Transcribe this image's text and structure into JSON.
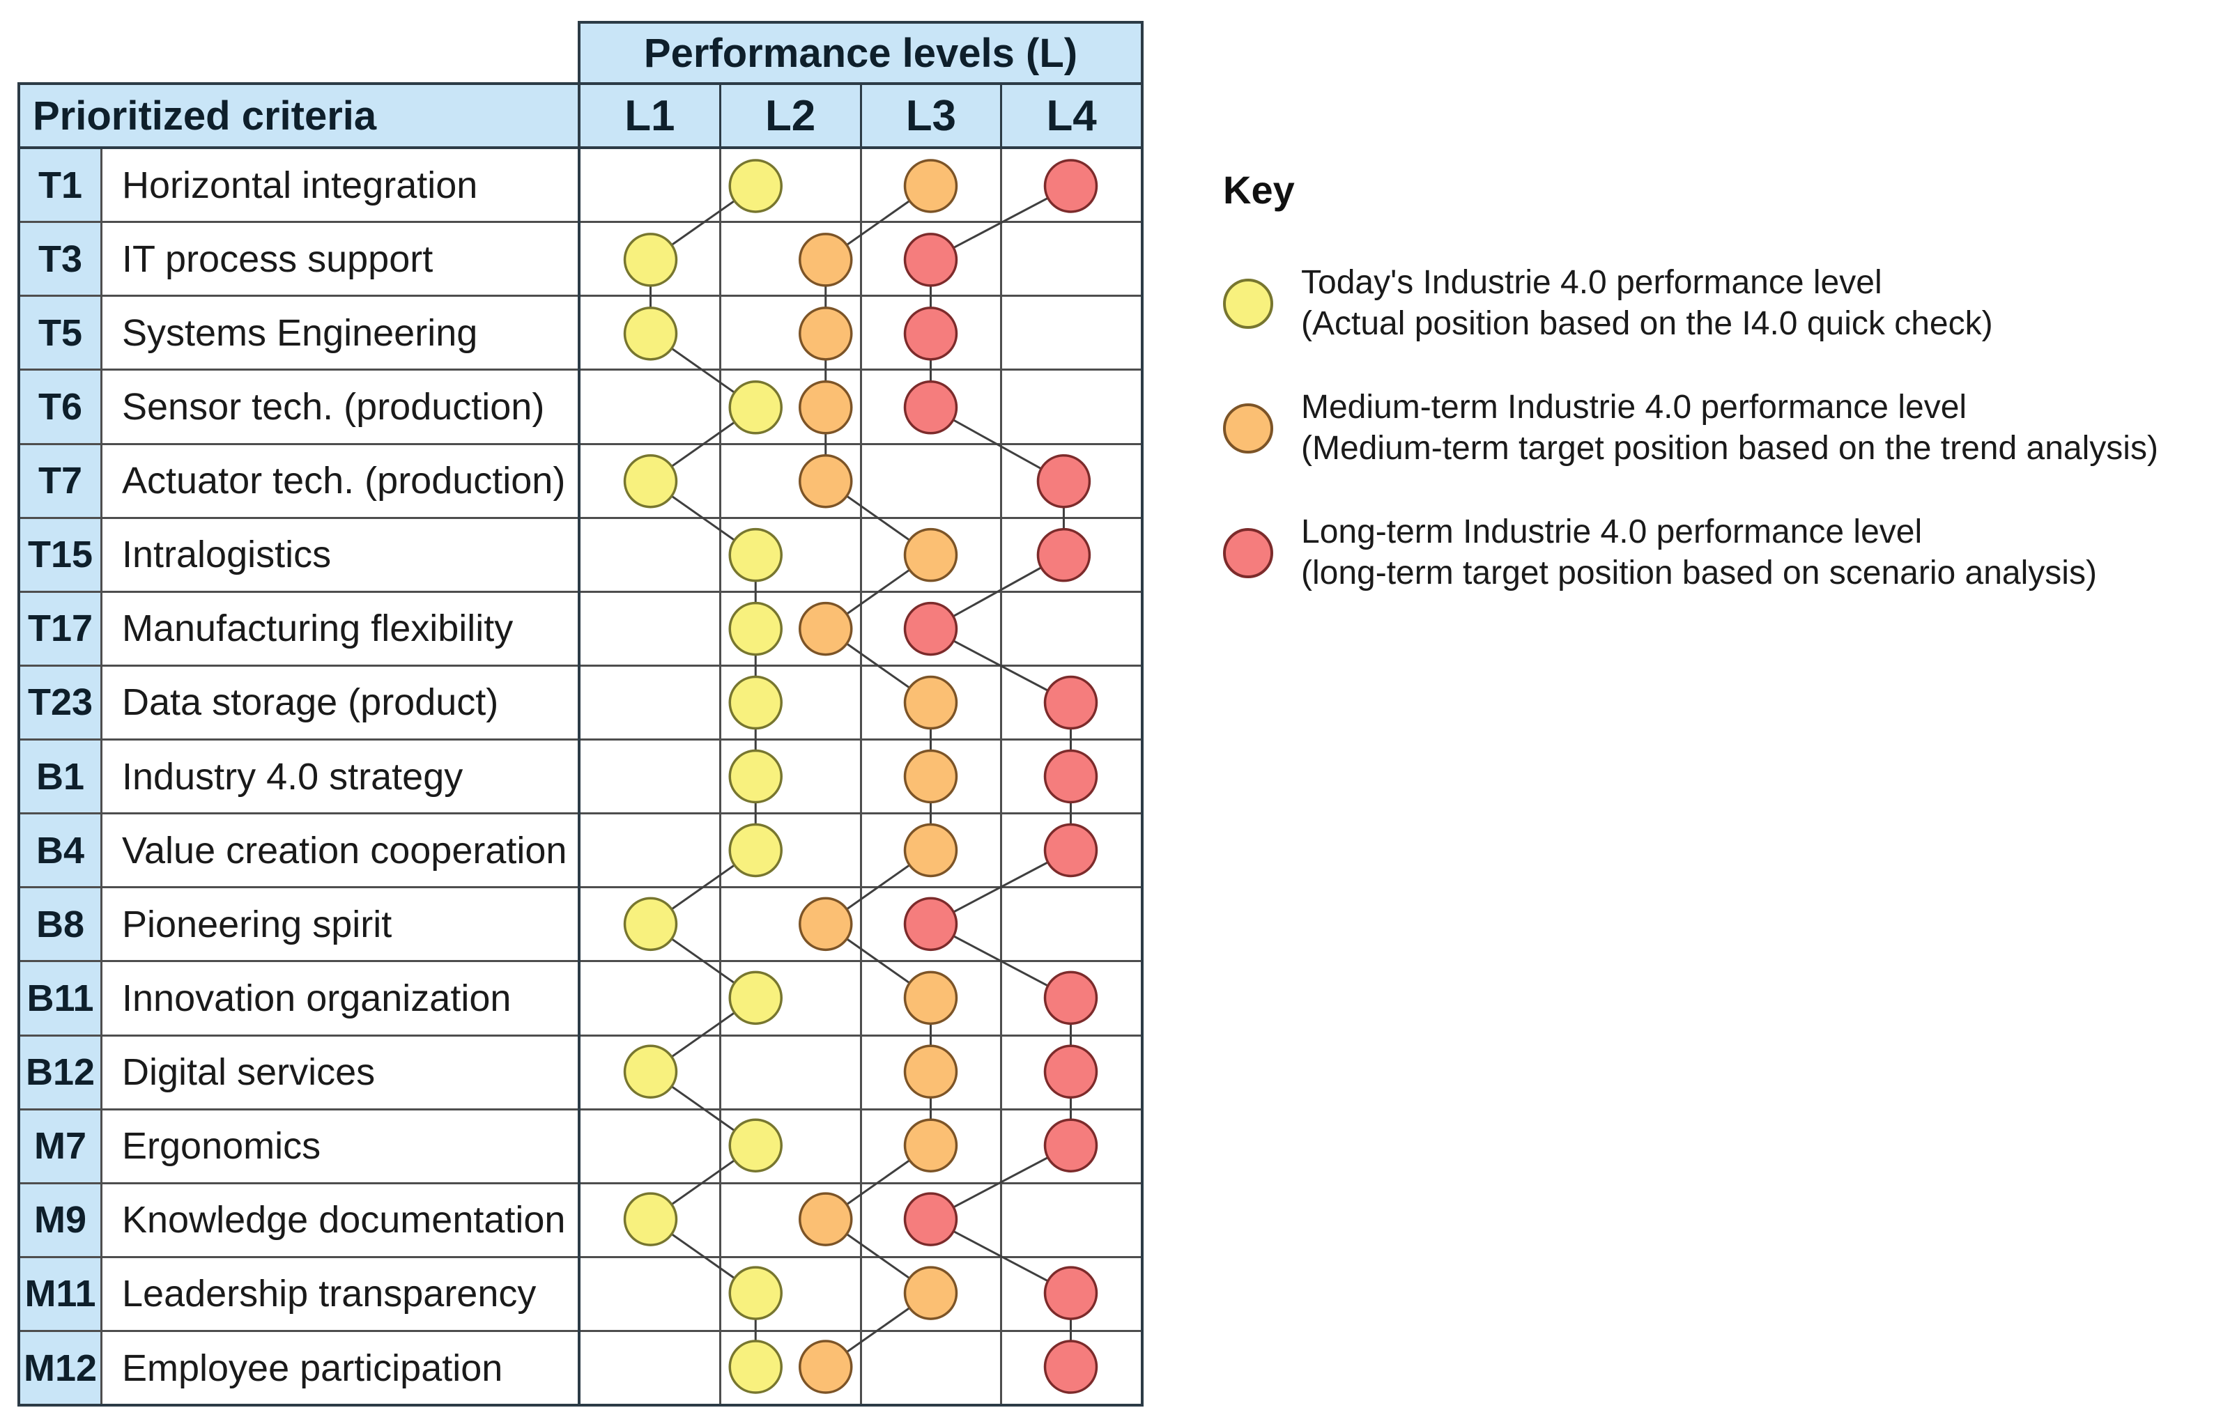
{
  "table": {
    "performance_header": "Performance levels (L)",
    "criteria_header": "Prioritized criteria",
    "level_labels": [
      "L1",
      "L2",
      "L3",
      "L4"
    ],
    "rows": [
      {
        "code": "T1",
        "label": "Horizontal integration"
      },
      {
        "code": "T3",
        "label": "IT process support"
      },
      {
        "code": "T5",
        "label": "Systems Engineering"
      },
      {
        "code": "T6",
        "label": "Sensor tech. (production)"
      },
      {
        "code": "T7",
        "label": "Actuator tech. (production)"
      },
      {
        "code": "T15",
        "label": "Intralogistics"
      },
      {
        "code": "T17",
        "label": "Manufacturing flexibility"
      },
      {
        "code": "T23",
        "label": "Data storage (product)"
      },
      {
        "code": "B1",
        "label": "Industry 4.0 strategy"
      },
      {
        "code": "B4",
        "label": "Value creation cooperation"
      },
      {
        "code": "B8",
        "label": "Pioneering spirit"
      },
      {
        "code": "B11",
        "label": "Innovation organization"
      },
      {
        "code": "B12",
        "label": "Digital services"
      },
      {
        "code": "M7",
        "label": "Ergonomics"
      },
      {
        "code": "M9",
        "label": "Knowledge documentation"
      },
      {
        "code": "M11",
        "label": "Leadership transparency"
      },
      {
        "code": "M12",
        "label": "Employee participation"
      }
    ]
  },
  "chart_data": {
    "type": "scatter",
    "title": "Performance levels (L)",
    "categories": [
      "T1",
      "T3",
      "T5",
      "T6",
      "T7",
      "T15",
      "T17",
      "T23",
      "B1",
      "B4",
      "B8",
      "B11",
      "B12",
      "M7",
      "M9",
      "M11",
      "M12"
    ],
    "levels": [
      "L1",
      "L2",
      "L3",
      "L4"
    ],
    "xlim": [
      0.5,
      4.5
    ],
    "note": "values are horizontal marker positions in level units (L1 center = 1 ... L4 center = 4); consecutive rows of each series are joined by thin connector lines",
    "series": [
      {
        "name": "today",
        "fill": "#f8f17e",
        "stroke": "#77762f",
        "values": [
          1.75,
          1,
          1,
          1.75,
          1,
          1.75,
          1.75,
          1.75,
          1.75,
          1.75,
          1,
          1.75,
          1,
          1.75,
          1,
          1.75,
          1.75
        ]
      },
      {
        "name": "medium_term",
        "fill": "#fbbf73",
        "stroke": "#7c5427",
        "values": [
          3,
          2.25,
          2.25,
          2.25,
          2.25,
          3,
          2.25,
          3,
          3,
          3,
          2.25,
          3,
          3,
          3,
          2.25,
          3,
          2.25
        ]
      },
      {
        "name": "long_term",
        "fill": "#f57d7d",
        "stroke": "#7c2b2b",
        "values": [
          4,
          3,
          3,
          3,
          3.95,
          3.95,
          3,
          4,
          4,
          4,
          3,
          4,
          4,
          4,
          3,
          4,
          4
        ]
      }
    ],
    "connector_color": "#3f3f3f"
  },
  "key": {
    "title": "Key",
    "items": [
      {
        "series": "today",
        "fill": "#f8f17e",
        "stroke": "#77762f",
        "line1": "Today's Industrie 4.0 performance level",
        "line2": "(Actual position based on the I4.0 quick check)"
      },
      {
        "series": "medium_term",
        "fill": "#fbbf73",
        "stroke": "#7c5427",
        "line1": "Medium-term Industrie 4.0 performance level",
        "line2": "(Medium-term target position based on the trend analysis)"
      },
      {
        "series": "long_term",
        "fill": "#f57d7d",
        "stroke": "#7c2b2b",
        "line1": "Long-term Industrie 4.0 performance level",
        "line2": "(long-term target position based on scenario analysis)"
      }
    ]
  },
  "colors": {
    "header_bg": "#c9e5f7",
    "outer_border": "#2c3b46",
    "grid_line": "#4e4e4e",
    "text_dark": "#0e1f2b"
  }
}
